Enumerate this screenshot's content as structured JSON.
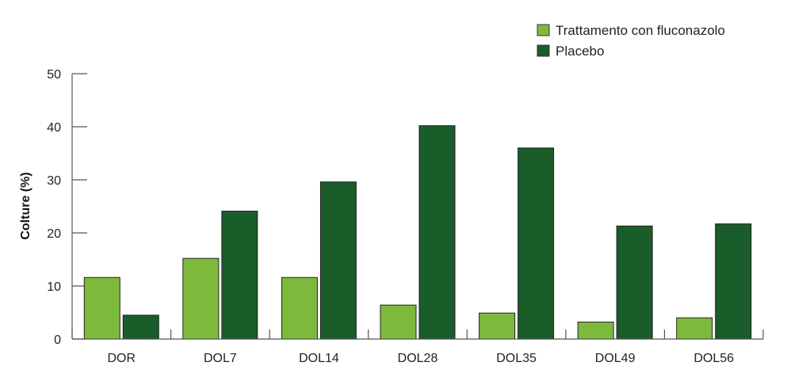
{
  "chart_data": {
    "type": "bar",
    "title": "",
    "xlabel": "",
    "ylabel": "Colture (%)",
    "ylim": [
      0,
      50
    ],
    "yticks": [
      0,
      10,
      20,
      30,
      40,
      50
    ],
    "grid": false,
    "legend_position": "top-right",
    "categories": [
      "DOR",
      "DOL7",
      "DOL14",
      "DOL28",
      "DOL35",
      "DOL49",
      "DOL56"
    ],
    "series": [
      {
        "name": "Trattamento con fluconazolo",
        "color": "#7dba3c",
        "values": [
          11.6,
          15.2,
          11.6,
          6.4,
          4.9,
          3.2,
          4.0
        ]
      },
      {
        "name": "Placebo",
        "color": "#1a5c2a",
        "values": [
          4.5,
          24.1,
          29.6,
          40.2,
          36.0,
          21.3,
          21.7
        ]
      }
    ]
  }
}
